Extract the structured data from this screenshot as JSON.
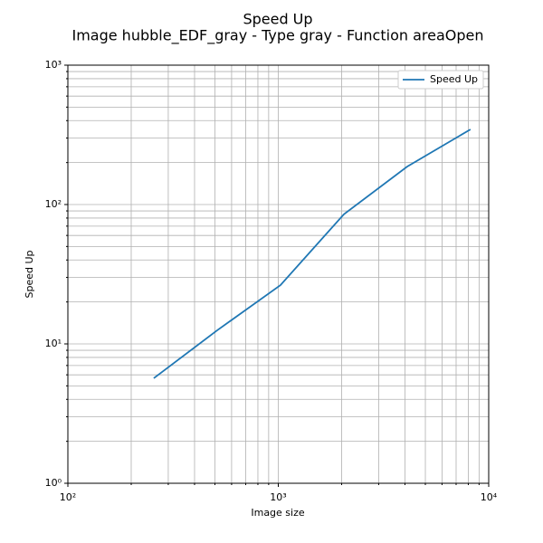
{
  "chart_data": {
    "type": "line",
    "title": "Speed Up",
    "subtitle": "Image hubble_EDF_gray - Type gray - Function areaOpen",
    "x_label": "Image size",
    "y_label": "Speed Up",
    "x": [
      256,
      512,
      1024,
      2048,
      4096,
      8192
    ],
    "series": [
      {
        "name": "Speed Up",
        "color": "#1f77b4",
        "values": [
          5.67,
          12.5,
          26.4,
          85,
          187,
          346
        ]
      }
    ],
    "xscale": "log",
    "yscale": "log",
    "xlim": [
      100,
      10000
    ],
    "ylim": [
      1,
      1000
    ],
    "xticks": [
      {
        "value": 100,
        "label": "10²"
      },
      {
        "value": 1000,
        "label": "10³"
      },
      {
        "value": 10000,
        "label": "10⁴"
      }
    ],
    "yticks": [
      {
        "value": 1,
        "label": "10⁰"
      },
      {
        "value": 10,
        "label": "10¹"
      },
      {
        "value": 100,
        "label": "10²"
      },
      {
        "value": 1000,
        "label": "10³"
      }
    ],
    "xminorticks": [
      200,
      300,
      400,
      500,
      600,
      700,
      800,
      900,
      2000,
      3000,
      4000,
      5000,
      6000,
      7000,
      8000,
      9000
    ],
    "yminorticks": [
      2,
      3,
      4,
      5,
      6,
      7,
      8,
      9,
      20,
      30,
      40,
      50,
      60,
      70,
      80,
      90,
      200,
      300,
      400,
      500,
      600,
      700,
      800,
      900
    ],
    "grid": true,
    "legend": "upper right"
  }
}
